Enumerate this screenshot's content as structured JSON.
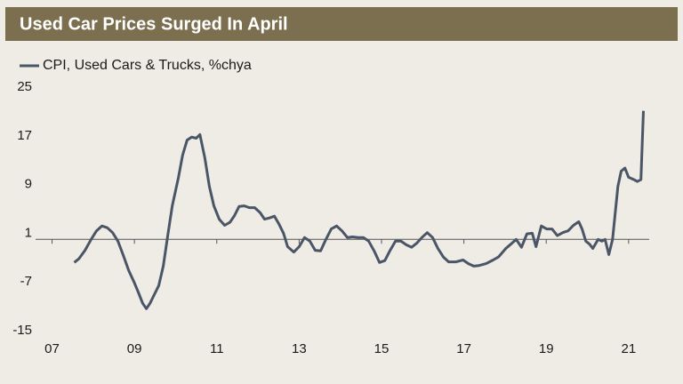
{
  "chart_data": {
    "type": "line",
    "title": "Used Car Prices Surged In April",
    "title_background": "#7b6f4f",
    "xlim": [
      2006.6,
      2021.5
    ],
    "xticks": [
      {
        "value": 2007,
        "label": "07"
      },
      {
        "value": 2009,
        "label": "09"
      },
      {
        "value": 2011,
        "label": "11"
      },
      {
        "value": 2013,
        "label": "13"
      },
      {
        "value": 2015,
        "label": "15"
      },
      {
        "value": 2017,
        "label": "17"
      },
      {
        "value": 2019,
        "label": "19"
      },
      {
        "value": 2021,
        "label": "21"
      }
    ],
    "ylim": [
      -15,
      25
    ],
    "yticks": [
      25,
      17,
      9,
      1,
      -7,
      -15
    ],
    "x": [
      2007.54,
      2007.65,
      2007.8,
      2007.95,
      2008.08,
      2008.21,
      2008.34,
      2008.47,
      2008.6,
      2008.73,
      2008.86,
      2008.99,
      2009.1,
      2009.2,
      2009.29,
      2009.38,
      2009.48,
      2009.59,
      2009.7,
      2009.81,
      2009.92,
      2010.07,
      2010.17,
      2010.28,
      2010.39,
      2010.5,
      2010.59,
      2010.71,
      2010.82,
      2010.93,
      2011.06,
      2011.19,
      2011.32,
      2011.43,
      2011.54,
      2011.67,
      2011.79,
      2011.92,
      2012.05,
      2012.16,
      2012.27,
      2012.4,
      2012.51,
      2012.62,
      2012.72,
      2012.87,
      2013.0,
      2013.13,
      2013.26,
      2013.39,
      2013.52,
      2013.65,
      2013.78,
      2013.91,
      2014.04,
      2014.17,
      2014.3,
      2014.43,
      2014.56,
      2014.69,
      2014.82,
      2014.95,
      2015.08,
      2015.21,
      2015.34,
      2015.47,
      2015.6,
      2015.73,
      2015.86,
      2015.98,
      2016.11,
      2016.24,
      2016.37,
      2016.5,
      2016.63,
      2016.81,
      2016.98,
      2017.11,
      2017.24,
      2017.37,
      2017.54,
      2017.71,
      2017.84,
      2018.02,
      2018.14,
      2018.27,
      2018.4,
      2018.53,
      2018.66,
      2018.75,
      2018.88,
      2019.01,
      2019.14,
      2019.27,
      2019.4,
      2019.53,
      2019.66,
      2019.79,
      2019.87,
      2019.96,
      2020.05,
      2020.13,
      2020.26,
      2020.35,
      2020.43,
      2020.52,
      2020.61,
      2020.74,
      2020.82,
      2020.91,
      2021.0,
      2021.13,
      2021.21,
      2021.3,
      2021.36
    ],
    "series": [
      {
        "name": "CPI, Used Cars & Trucks, %chya",
        "color": "#4a5566",
        "values": [
          -3.8,
          -3.2,
          -1.8,
          0.0,
          1.4,
          2.2,
          1.9,
          1.1,
          -0.3,
          -2.6,
          -5.1,
          -7.0,
          -8.8,
          -10.5,
          -11.4,
          -10.5,
          -9.1,
          -7.6,
          -4.4,
          0.7,
          5.5,
          10.2,
          13.8,
          16.3,
          16.8,
          16.6,
          17.2,
          13.4,
          8.7,
          5.5,
          3.3,
          2.3,
          2.8,
          3.9,
          5.4,
          5.5,
          5.2,
          5.2,
          4.4,
          3.3,
          3.5,
          3.8,
          2.5,
          1.0,
          -1.2,
          -2.1,
          -1.2,
          0.3,
          -0.3,
          -1.8,
          -1.9,
          0.0,
          1.7,
          2.2,
          1.4,
          0.3,
          0.4,
          0.3,
          0.3,
          -0.3,
          -1.9,
          -3.8,
          -3.5,
          -1.8,
          -0.3,
          -0.3,
          -0.9,
          -1.3,
          -0.6,
          0.3,
          1.1,
          0.3,
          -1.5,
          -2.9,
          -3.7,
          -3.7,
          -3.4,
          -4.0,
          -4.4,
          -4.3,
          -4.0,
          -3.4,
          -2.9,
          -1.5,
          -0.8,
          0.0,
          -1.3,
          0.9,
          1.0,
          -1.2,
          2.2,
          1.7,
          1.7,
          0.6,
          1.1,
          1.4,
          2.3,
          2.9,
          1.7,
          -0.3,
          -0.8,
          -1.5,
          0.0,
          -0.3,
          0.0,
          -2.5,
          0.0,
          8.7,
          11.2,
          11.7,
          10.2,
          9.8,
          9.5,
          9.8,
          21.1
        ]
      }
    ]
  }
}
